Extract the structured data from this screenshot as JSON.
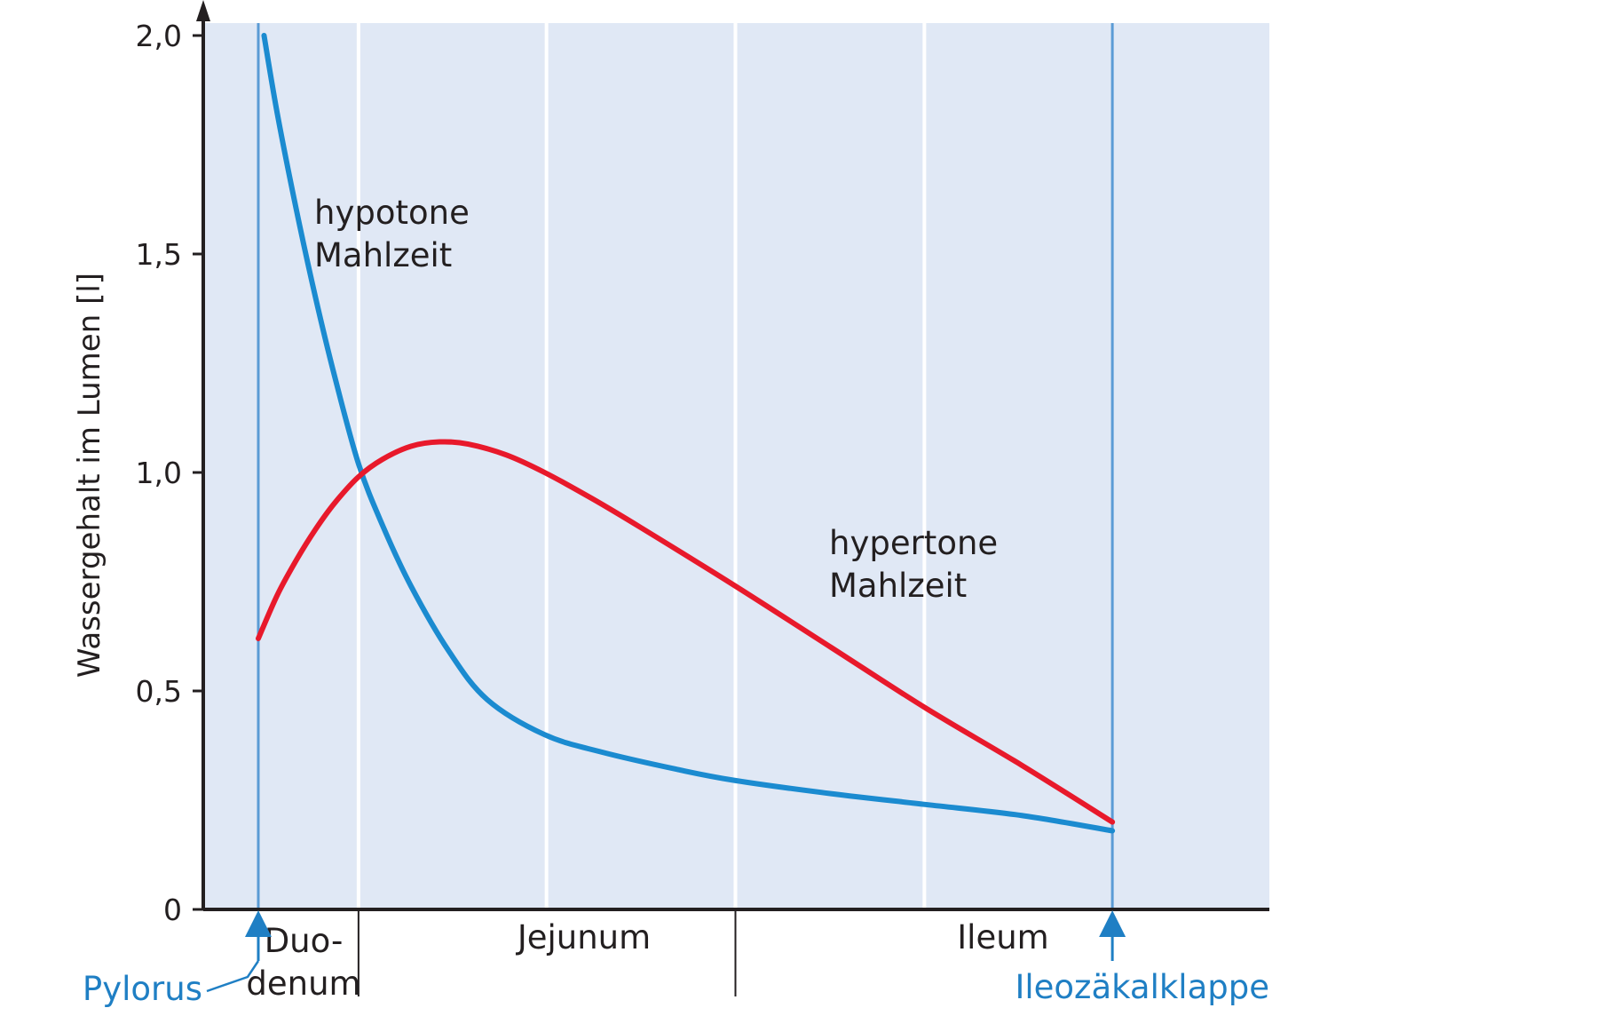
{
  "chart_data": {
    "type": "line",
    "title": "",
    "xlabel": "",
    "ylabel": "Wassergehalt im Lumen [l]",
    "ylim": [
      0,
      2.0
    ],
    "xlim": [
      0,
      1
    ],
    "grid": "vertical",
    "legend": "none",
    "yticks": [
      {
        "value": 0,
        "label": "0"
      },
      {
        "value": 0.5,
        "label": "0,5"
      },
      {
        "value": 1.0,
        "label": "1,0"
      },
      {
        "value": 1.5,
        "label": "1,5"
      },
      {
        "value": 2.0,
        "label": "2,0"
      }
    ],
    "vertical_gridlines": [
      0.105,
      0.302,
      0.5,
      0.698
    ],
    "regions": [
      {
        "label": [
          "Duo-",
          "denum"
        ],
        "from": 0.0,
        "to": 0.105
      },
      {
        "label": [
          "Jejunum"
        ],
        "from": 0.105,
        "to": 0.5
      },
      {
        "label": [
          "Ileum"
        ],
        "from": 0.5,
        "to": 0.895
      }
    ],
    "markers": [
      {
        "label": "Pylorus",
        "x": 0.0
      },
      {
        "label": "Ileozäkalklappe",
        "x": 0.895
      }
    ],
    "series": [
      {
        "label": [
          "hypotone",
          "Mahlzeit"
        ],
        "color": "#1b8bd0",
        "x": [
          0.006,
          0.02,
          0.04,
          0.06,
          0.08,
          0.105,
          0.13,
          0.16,
          0.2,
          0.24,
          0.3,
          0.36,
          0.44,
          0.5,
          0.6,
          0.7,
          0.8,
          0.895
        ],
        "y": [
          2.0,
          1.82,
          1.6,
          1.4,
          1.22,
          1.02,
          0.88,
          0.74,
          0.59,
          0.48,
          0.4,
          0.36,
          0.32,
          0.295,
          0.265,
          0.24,
          0.215,
          0.18
        ]
      },
      {
        "label": [
          "hypertone",
          "Mahlzeit"
        ],
        "color": "#e8192b",
        "x": [
          0.0,
          0.02,
          0.04,
          0.06,
          0.08,
          0.105,
          0.13,
          0.16,
          0.19,
          0.22,
          0.26,
          0.3,
          0.35,
          0.4,
          0.5,
          0.6,
          0.7,
          0.8,
          0.895
        ],
        "y": [
          0.62,
          0.72,
          0.8,
          0.87,
          0.93,
          0.99,
          1.03,
          1.06,
          1.07,
          1.065,
          1.04,
          1.0,
          0.94,
          0.875,
          0.74,
          0.6,
          0.46,
          0.33,
          0.2
        ]
      }
    ]
  },
  "colors": {
    "plot_background": "#e0e8f5",
    "gridline": "#ffffff",
    "marker_line": "#5b9bd5",
    "marker_text": "#1f7fc4",
    "axis": "#231f20"
  }
}
